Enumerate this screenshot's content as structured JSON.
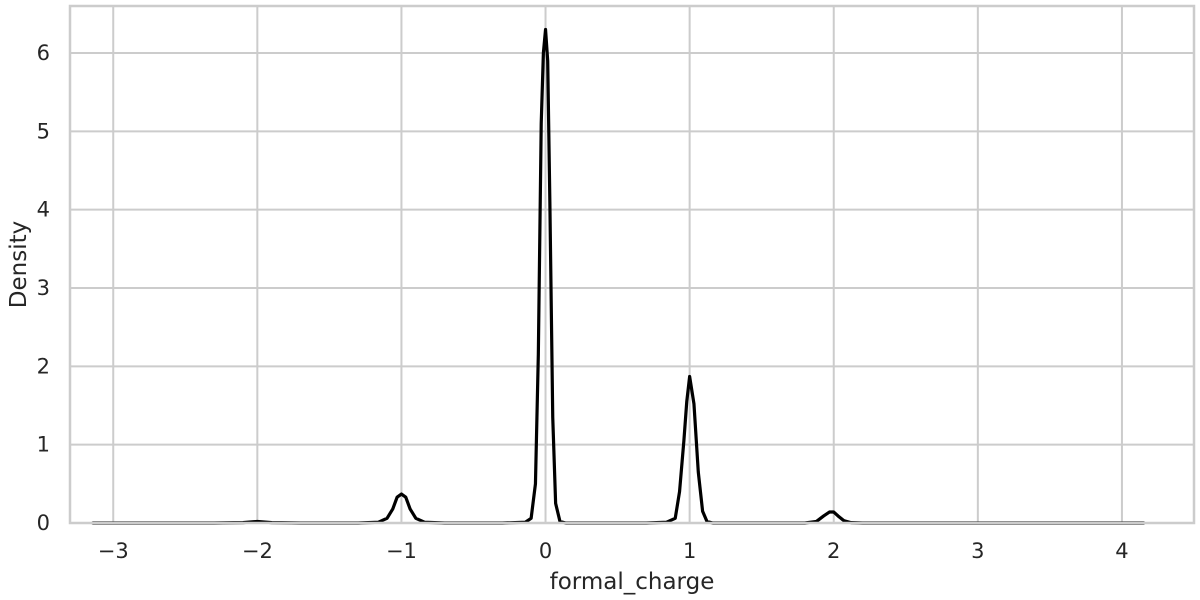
{
  "chart_data": {
    "type": "line",
    "title": "",
    "xlabel": "formal_charge",
    "ylabel": "Density",
    "xlim": [
      -3.3,
      4.5
    ],
    "ylim": [
      0,
      6.6
    ],
    "xticks": [
      -3,
      -2,
      -1,
      0,
      1,
      2,
      3,
      4
    ],
    "xtick_labels": [
      "−3",
      "−2",
      "−1",
      "0",
      "1",
      "2",
      "3",
      "4"
    ],
    "yticks": [
      0,
      1,
      2,
      3,
      4,
      5,
      6
    ],
    "ytick_labels": [
      "0",
      "1",
      "2",
      "3",
      "4",
      "5",
      "6"
    ],
    "grid": true,
    "legend": "none",
    "series": [
      {
        "color": "#000000",
        "x": [
          -3.14,
          -2.3,
          -2.1,
          -2.0,
          -1.9,
          -1.7,
          -1.3,
          -1.16,
          -1.1,
          -1.06,
          -1.03,
          -1.0,
          -0.97,
          -0.94,
          -0.9,
          -0.84,
          -0.7,
          -0.3,
          -0.14,
          -0.1,
          -0.07,
          -0.05,
          -0.03,
          -0.015,
          0.0,
          0.015,
          0.03,
          0.05,
          0.07,
          0.1,
          0.14,
          0.3,
          0.7,
          0.84,
          0.9,
          0.93,
          0.96,
          0.98,
          1.0,
          1.03,
          1.06,
          1.09,
          1.12,
          1.16,
          1.3,
          1.8,
          1.88,
          1.93,
          1.97,
          2.0,
          2.03,
          2.07,
          2.12,
          2.2,
          3.0,
          4.15
        ],
        "y": [
          0.0,
          0.0,
          0.005,
          0.02,
          0.005,
          0.0,
          0.0,
          0.01,
          0.06,
          0.18,
          0.33,
          0.37,
          0.33,
          0.18,
          0.06,
          0.01,
          0.0,
          0.0,
          0.01,
          0.06,
          0.5,
          2.15,
          5.1,
          6.0,
          6.3,
          5.9,
          4.1,
          1.35,
          0.25,
          0.02,
          0.0,
          0.0,
          0.0,
          0.01,
          0.06,
          0.4,
          1.05,
          1.55,
          1.87,
          1.52,
          0.65,
          0.15,
          0.02,
          0.0,
          0.0,
          0.0,
          0.02,
          0.09,
          0.14,
          0.14,
          0.09,
          0.03,
          0.005,
          0.0,
          0.0,
          0.0
        ]
      }
    ]
  }
}
